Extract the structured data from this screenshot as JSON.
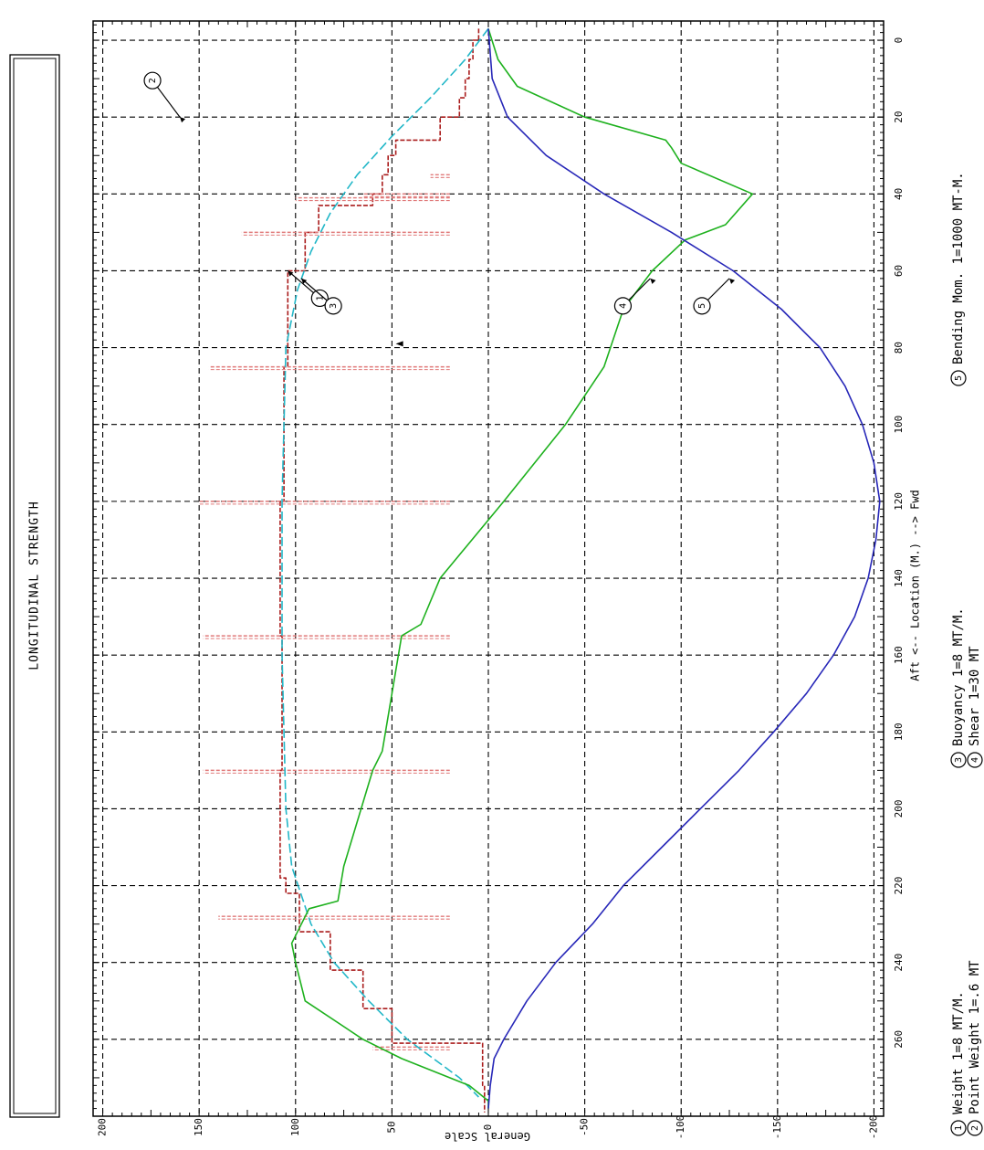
{
  "chart_data": {
    "type": "line",
    "title": "LONGITUDINAL STRENGTH",
    "xlabel": "Aft <-- Location (M.) --> Fwd",
    "ylabel": "General Scale",
    "xlim": [
      -5,
      280
    ],
    "ylim": [
      -205,
      205
    ],
    "x_ticks": [
      0,
      20,
      40,
      60,
      80,
      100,
      120,
      140,
      160,
      180,
      200,
      220,
      240,
      260
    ],
    "y_ticks": [
      200,
      150,
      100,
      50,
      0,
      -50,
      -100,
      -150,
      -200
    ],
    "x_tick_labels": [
      "0",
      "20",
      "40",
      "60",
      "80",
      "100",
      "120",
      "140",
      "160",
      "180",
      "200",
      "220",
      "240",
      "260"
    ],
    "y_tick_labels": [
      "200",
      "150",
      "100",
      "50",
      "0",
      "-50",
      "-100",
      "-150",
      "-200"
    ],
    "grid": true,
    "orientation": "rotated-90-clockwise",
    "legend": [
      {
        "number": "1",
        "text": "Weight 1=8 MT/M."
      },
      {
        "number": "2",
        "text": "Point Weight 1=.6 MT"
      },
      {
        "number": "3",
        "text": "Buoyancy 1=8 MT/M."
      },
      {
        "number": "4",
        "text": "Shear 1=30 MT"
      },
      {
        "number": "5",
        "text": "Bending Mom. 1=1000 MT-M."
      }
    ],
    "series": [
      {
        "number": "1",
        "color": "#aa1c1c",
        "style": "step-dashed",
        "x": [
          -3,
          0,
          0,
          5,
          5,
          10,
          10,
          15,
          15,
          20,
          20,
          26,
          26,
          30,
          30,
          35,
          35,
          40,
          40,
          43,
          43,
          50,
          50,
          60,
          60,
          85,
          85,
          120,
          120,
          155,
          155,
          190,
          190,
          218,
          218,
          222,
          222,
          232,
          232,
          242,
          242,
          252,
          252,
          261,
          261,
          272,
          272,
          279
        ],
        "values": [
          5,
          5,
          8,
          8,
          10,
          10,
          12,
          12,
          15,
          15,
          25,
          25,
          48,
          48,
          52,
          52,
          55,
          55,
          60,
          60,
          88,
          88,
          95,
          95,
          104,
          104,
          106,
          106,
          108,
          108,
          107,
          107,
          108,
          108,
          105,
          105,
          98,
          98,
          82,
          82,
          65,
          65,
          50,
          50,
          3,
          3,
          2,
          2
        ]
      },
      {
        "number": "2",
        "color": "#e07a7a",
        "style": "point-bars",
        "x": [
          20,
          35,
          40,
          41,
          50,
          85,
          120,
          155,
          190,
          228,
          262
        ],
        "values": [
          12,
          30,
          65,
          100,
          128,
          145,
          150,
          148,
          148,
          140,
          60
        ]
      },
      {
        "number": "3",
        "color": "#22b7c8",
        "style": "dashed",
        "x": [
          -3,
          5,
          15,
          25,
          35,
          45,
          55,
          65,
          80,
          100,
          120,
          140,
          160,
          180,
          200,
          215,
          230,
          240,
          250,
          260,
          270,
          275
        ],
        "values": [
          0,
          12,
          30,
          50,
          68,
          82,
          92,
          99,
          105,
          106,
          107,
          107,
          107,
          106,
          105,
          102,
          92,
          80,
          62,
          42,
          15,
          5
        ]
      },
      {
        "number": "4",
        "color": "#1eb11e",
        "style": "solid",
        "x": [
          -3,
          5,
          12,
          20,
          26,
          28,
          32,
          40,
          48,
          52,
          60,
          70,
          85,
          100,
          120,
          140,
          152,
          155,
          185,
          190,
          215,
          224,
          226,
          235,
          240,
          250,
          260,
          265,
          272,
          276,
          278
        ],
        "values": [
          0,
          -5,
          -15,
          -50,
          -92,
          -95,
          -100,
          -137,
          -123,
          -102,
          -85,
          -70,
          -60,
          -40,
          -8,
          25,
          35,
          45,
          55,
          60,
          75,
          78,
          93,
          102,
          100,
          95,
          65,
          45,
          10,
          0,
          0
        ]
      },
      {
        "number": "5",
        "color": "#2727b8",
        "style": "solid",
        "x": [
          -3,
          10,
          20,
          30,
          40,
          50,
          60,
          70,
          80,
          90,
          100,
          110,
          120,
          130,
          140,
          150,
          160,
          170,
          180,
          190,
          200,
          210,
          220,
          230,
          240,
          250,
          260,
          265,
          272,
          278
        ],
        "values": [
          0,
          -2,
          -10,
          -30,
          -60,
          -95,
          -127,
          -152,
          -172,
          -185,
          -194,
          -200,
          -203,
          -201,
          -197,
          -190,
          -179,
          -165,
          -148,
          -130,
          -110,
          -90,
          -70,
          -54,
          -35,
          -20,
          -8,
          -3,
          -1,
          0
        ]
      }
    ],
    "annotations": [
      {
        "number": "1",
        "x": 60,
        "value": 104
      },
      {
        "number": "2",
        "x": 20,
        "value": 160
      },
      {
        "number": "3",
        "x": 62,
        "value": 97
      },
      {
        "number": "4",
        "x": 62,
        "value": -84
      },
      {
        "number": "5",
        "x": 62,
        "value": -125
      }
    ]
  }
}
